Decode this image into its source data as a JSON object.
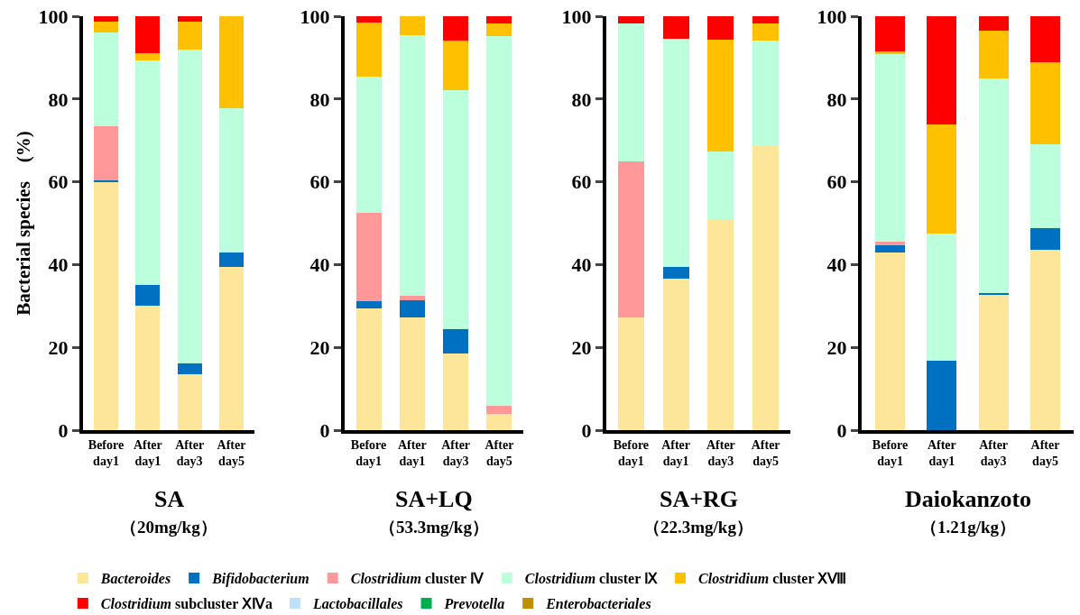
{
  "chart_data": [
    {
      "type": "bar",
      "stacked": true,
      "title": "SA",
      "subtitle": "（20mg/kg）",
      "ylabel": "Bacterial species　(%)",
      "categories": [
        "Before\nday1",
        "After\nday1",
        "After\nday3",
        "After\nday5"
      ],
      "ylim": [
        0,
        100
      ],
      "yticks": [
        0,
        20,
        40,
        60,
        80,
        100
      ],
      "legend": "bottom",
      "series": [
        {
          "name": "Bacteroides",
          "color": "#fde59a",
          "values": [
            60.0,
            30.0,
            13.6,
            39.5
          ]
        },
        {
          "name": "Bifidobacterium",
          "color": "#0070c0",
          "values": [
            0.4,
            5.0,
            2.6,
            3.5
          ]
        },
        {
          "name": "Clostridium cluster Ⅳ",
          "color": "#ff9999",
          "values": [
            13.0,
            0,
            0,
            0
          ]
        },
        {
          "name": "Clostridium cluster Ⅸ",
          "color": "#bbffdd",
          "values": [
            22.6,
            54.4,
            75.8,
            34.8
          ]
        },
        {
          "name": "Clostridium cluster ⅩⅧ",
          "color": "#ffc000",
          "values": [
            2.8,
            1.7,
            6.8,
            22.2
          ]
        },
        {
          "name": "Clostridium subcluster ⅩⅣa",
          "color": "#ff0000",
          "values": [
            1.2,
            8.9,
            1.2,
            0
          ]
        },
        {
          "name": "Lactobacillales",
          "color": "#bde0ff",
          "values": [
            0,
            0,
            0,
            0
          ]
        },
        {
          "name": "Prevotella",
          "color": "#00b050",
          "values": [
            0,
            0,
            0,
            0
          ]
        },
        {
          "name": "Enterobacteriales",
          "color": "#bf8f00",
          "values": [
            0,
            0,
            0,
            0
          ]
        }
      ]
    },
    {
      "type": "bar",
      "stacked": true,
      "title": "SA+LQ",
      "subtitle": "（53.3mg/kg）",
      "categories": [
        "Before\nday1",
        "After\nday1",
        "After\nday3",
        "After\nday5"
      ],
      "ylim": [
        0,
        100
      ],
      "yticks": [
        0,
        20,
        40,
        60,
        80,
        100
      ],
      "series": [
        {
          "color": "#fde59a",
          "values": [
            29.4,
            27.3,
            18.6,
            3.9
          ]
        },
        {
          "color": "#0070c0",
          "values": [
            1.7,
            4.0,
            5.7,
            0
          ]
        },
        {
          "color": "#ff9999",
          "values": [
            21.3,
            1.2,
            0,
            2.0
          ]
        },
        {
          "color": "#bbffdd",
          "values": [
            33.0,
            63.0,
            57.9,
            89.4
          ]
        },
        {
          "color": "#ffc000",
          "values": [
            13.1,
            4.5,
            12.0,
            3.0
          ]
        },
        {
          "color": "#ff0000",
          "values": [
            1.5,
            0,
            5.8,
            1.7
          ]
        }
      ]
    },
    {
      "type": "bar",
      "stacked": true,
      "title": "SA+RG",
      "subtitle": "（22.3mg/kg）",
      "categories": [
        "Before\nday1",
        "After\nday1",
        "After\nday3",
        "After\nday5"
      ],
      "ylim": [
        0,
        100
      ],
      "yticks": [
        0,
        20,
        40,
        60,
        80,
        100
      ],
      "series": [
        {
          "color": "#fde59a",
          "values": [
            27.3,
            36.6,
            50.9,
            68.6
          ]
        },
        {
          "color": "#0070c0",
          "values": [
            0,
            2.9,
            0,
            0
          ]
        },
        {
          "color": "#ff9999",
          "values": [
            37.6,
            0,
            0,
            0
          ]
        },
        {
          "color": "#bbffdd",
          "values": [
            33.4,
            55.1,
            16.4,
            25.6
          ]
        },
        {
          "color": "#ffc000",
          "values": [
            0,
            0,
            27.1,
            4.1
          ]
        },
        {
          "color": "#ff0000",
          "values": [
            1.7,
            5.4,
            5.6,
            1.7
          ]
        }
      ]
    },
    {
      "type": "bar",
      "stacked": true,
      "title": "Daiokanzoto",
      "subtitle": "（1.21g/kg）",
      "categories": [
        "Before\nday1",
        "After\nday1",
        "After\nday3",
        "After\nday5"
      ],
      "ylim": [
        0,
        100
      ],
      "yticks": [
        0,
        20,
        40,
        60,
        80,
        100
      ],
      "series": [
        {
          "color": "#fde59a",
          "values": [
            43.0,
            0,
            32.6,
            43.5
          ]
        },
        {
          "color": "#0070c0",
          "values": [
            1.6,
            16.8,
            0.5,
            5.4
          ]
        },
        {
          "color": "#ff9999",
          "values": [
            0.9,
            0,
            0,
            0
          ]
        },
        {
          "color": "#bbffdd",
          "values": [
            45.4,
            30.6,
            51.9,
            20.1
          ]
        },
        {
          "color": "#ffc000",
          "values": [
            0.7,
            26.5,
            11.6,
            19.9
          ]
        },
        {
          "color": "#ff0000",
          "values": [
            8.4,
            26.1,
            3.4,
            11.1
          ]
        }
      ]
    }
  ]
}
